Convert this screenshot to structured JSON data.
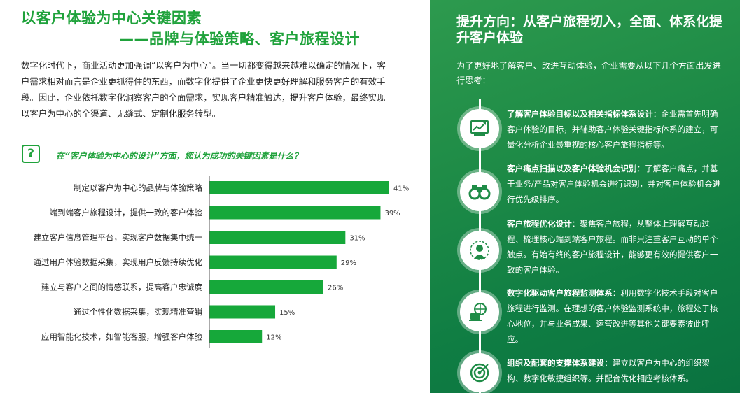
{
  "left": {
    "title_line1": "以客户体验为中心关键因素",
    "title_line2": "——品牌与体验策略、客户旅程设计",
    "intro": "数字化时代下，商业活动更加强调“以客户为中心”。当一切都变得越来越难以确定的情况下，客户需求相对而言是企业更抓得住的东西，而数字化提供了企业更快更好理解和服务客户的有效手段。因此，企业依托数字化洞察客户的全面需求，实现客户精准触达，提升客户体验，最终实现以客户为中心的全渠道、无缝式、定制化服务转型。",
    "question_icon": "?",
    "question": "在“客户体验为中心的设计”方面，您认为成功的关键因素是什么？"
  },
  "chart_data": {
    "type": "bar",
    "orientation": "horizontal",
    "categories": [
      "制定以客户为中心的品牌与体验策略",
      "端到端客户旅程设计，提供一致的客户体验",
      "建立客户信息管理平台，实现客户数据集中统一",
      "通过用户体验数据采集，实现用户反馈持续优化",
      "建立与客户之间的情感联系，提高客户忠诚度",
      "通过个性化数据采集，实现精准营销",
      "应用智能化技术，如智能客服，增强客户体验"
    ],
    "values": [
      41,
      39,
      31,
      29,
      26,
      15,
      12
    ],
    "value_labels": [
      "41%",
      "39%",
      "31%",
      "29%",
      "26%",
      "15%",
      "12%"
    ],
    "unit": "%",
    "bar_color": "#16a83a",
    "xlim": [
      0,
      41
    ],
    "grid": false,
    "legend": "none"
  },
  "right": {
    "title": "提升方向：从客户旅程切入，全面、体系化提升客户体验",
    "intro": "为了更好地了解客户、改进互动体验，企业需要从以下几个方面出发进行思考：",
    "items": [
      {
        "icon": "growth-chart-icon",
        "heading": "了解客户体验目标以及相关指标体系设计",
        "text": "：企业需首先明确客户体验的目标，并辅助客户体验关键指标体系的建立，可量化分析企业最重视的核心客户旅程指标等。"
      },
      {
        "icon": "binoculars-icon",
        "heading": "客户痛点扫描以及客户体验机会识别",
        "text": "：了解客户痛点，并基于业务/产品对客户体验机会进行识别，并对客户体验机会进行优先级排序。"
      },
      {
        "icon": "customer-network-icon",
        "heading": "客户旅程优化设计",
        "text": "：聚焦客户旅程，从整体上理解互动过程、梳理核心端到端客户旅程。而非只注重客户互动的单个触点。有始有终的客户旅程设计，能够更有效的提供客户一致的客户体验。"
      },
      {
        "icon": "digital-monitor-icon",
        "heading": "数字化驱动客户旅程监测体系",
        "text": "：利用数字化技术手段对客户旅程进行监测。在理想的客户体验监测系统中，旅程处于核心地位，并与业务成果、运营改进等其他关键要素彼此呼应。"
      },
      {
        "icon": "target-icon",
        "heading": "组织及配套的支撑体系建设",
        "text": "：建立以客户为中心的组织架构、数字化敏捷组织等。并配合优化相应考核体系。"
      }
    ],
    "accent_color": "#1f8c47"
  }
}
